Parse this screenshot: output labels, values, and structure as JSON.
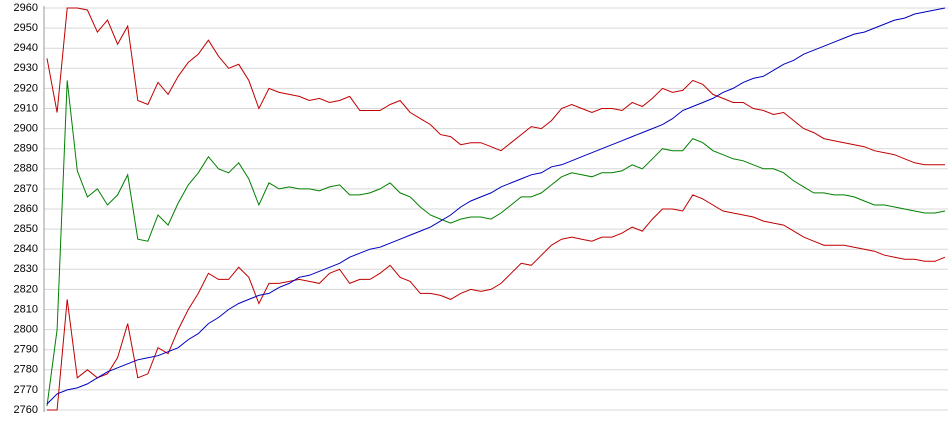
{
  "chart_data": {
    "type": "line",
    "ylim": [
      2760,
      2960
    ],
    "yticks": [
      2760,
      2770,
      2780,
      2790,
      2800,
      2810,
      2820,
      2830,
      2840,
      2850,
      2860,
      2870,
      2880,
      2890,
      2900,
      2910,
      2920,
      2930,
      2940,
      2950,
      2960
    ],
    "grid": true,
    "series": [
      {
        "color": "#c00000",
        "values": [
          2935,
          2908,
          2960,
          2960,
          2959,
          2948,
          2954,
          2942,
          2951,
          2914,
          2912,
          2923,
          2917,
          2926,
          2933,
          2937,
          2944,
          2936,
          2930,
          2932,
          2924,
          2910,
          2920,
          2918,
          2917,
          2916,
          2914,
          2915,
          2913,
          2914,
          2916,
          2909,
          2909,
          2909,
          2912,
          2914,
          2908,
          2905,
          2902,
          2897,
          2896,
          2892,
          2893,
          2893,
          2891,
          2889,
          2893,
          2897,
          2901,
          2900,
          2904,
          2910,
          2912,
          2910,
          2908,
          2910,
          2910,
          2909,
          2913,
          2911,
          2915,
          2920,
          2918,
          2919,
          2924,
          2922,
          2917,
          2915,
          2913,
          2913,
          2910,
          2909,
          2907,
          2908,
          2904,
          2900,
          2898,
          2895,
          2894,
          2893,
          2892,
          2891,
          2889,
          2888,
          2887,
          2885,
          2883,
          2882,
          2882,
          2882
        ]
      },
      {
        "color": "#008000",
        "values": [
          2762,
          2800,
          2924,
          2879,
          2866,
          2870,
          2862,
          2867,
          2877,
          2845,
          2844,
          2857,
          2852,
          2863,
          2872,
          2878,
          2886,
          2880,
          2878,
          2883,
          2875,
          2862,
          2873,
          2870,
          2871,
          2870,
          2870,
          2869,
          2871,
          2872,
          2867,
          2867,
          2868,
          2870,
          2873,
          2868,
          2866,
          2861,
          2857,
          2855,
          2853,
          2855,
          2856,
          2856,
          2855,
          2858,
          2862,
          2866,
          2866,
          2868,
          2872,
          2876,
          2878,
          2877,
          2876,
          2878,
          2878,
          2879,
          2882,
          2880,
          2885,
          2890,
          2889,
          2889,
          2895,
          2893,
          2889,
          2887,
          2885,
          2884,
          2882,
          2880,
          2880,
          2878,
          2874,
          2871,
          2868,
          2868,
          2867,
          2867,
          2866,
          2864,
          2862,
          2862,
          2861,
          2860,
          2859,
          2858,
          2858,
          2859
        ]
      },
      {
        "color": "#c00000",
        "values": [
          2760,
          2760,
          2815,
          2776,
          2780,
          2776,
          2778,
          2786,
          2803,
          2776,
          2778,
          2791,
          2788,
          2800,
          2810,
          2818,
          2828,
          2825,
          2825,
          2831,
          2826,
          2813,
          2823,
          2823,
          2824,
          2825,
          2824,
          2823,
          2828,
          2830,
          2823,
          2825,
          2825,
          2828,
          2832,
          2826,
          2824,
          2818,
          2818,
          2817,
          2815,
          2818,
          2820,
          2819,
          2820,
          2823,
          2828,
          2833,
          2832,
          2837,
          2842,
          2845,
          2846,
          2845,
          2844,
          2846,
          2846,
          2848,
          2851,
          2849,
          2855,
          2860,
          2860,
          2859,
          2867,
          2865,
          2862,
          2859,
          2858,
          2857,
          2856,
          2854,
          2853,
          2852,
          2849,
          2846,
          2844,
          2842,
          2842,
          2842,
          2841,
          2840,
          2839,
          2837,
          2836,
          2835,
          2835,
          2834,
          2834,
          2836
        ]
      },
      {
        "color": "#0000c0",
        "values": [
          2763,
          2768,
          2770,
          2771,
          2773,
          2776,
          2779,
          2781,
          2783,
          2785,
          2786,
          2787,
          2789,
          2791,
          2795,
          2798,
          2803,
          2806,
          2810,
          2813,
          2815,
          2817,
          2818,
          2821,
          2823,
          2826,
          2827,
          2829,
          2831,
          2833,
          2836,
          2838,
          2840,
          2841,
          2843,
          2845,
          2847,
          2849,
          2851,
          2854,
          2857,
          2861,
          2864,
          2866,
          2868,
          2871,
          2873,
          2875,
          2877,
          2878,
          2881,
          2882,
          2884,
          2886,
          2888,
          2890,
          2892,
          2894,
          2896,
          2898,
          2900,
          2902,
          2905,
          2909,
          2911,
          2913,
          2915,
          2918,
          2920,
          2923,
          2925,
          2926,
          2929,
          2932,
          2934,
          2937,
          2939,
          2941,
          2943,
          2945,
          2947,
          2948,
          2950,
          2952,
          2954,
          2955,
          2957,
          2958,
          2959,
          2960
        ]
      }
    ]
  }
}
